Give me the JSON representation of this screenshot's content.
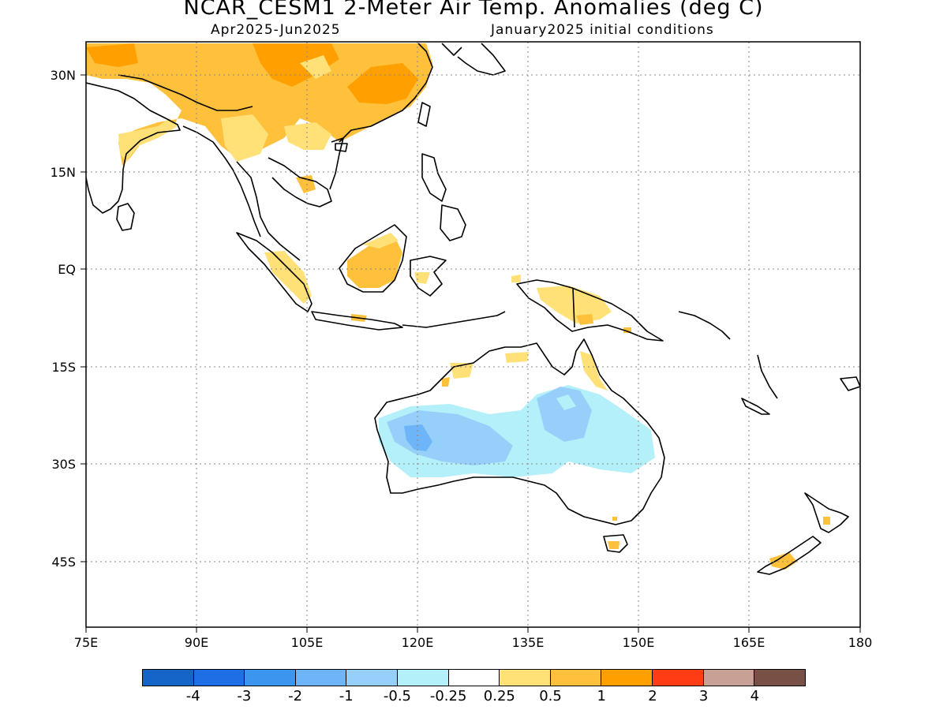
{
  "header": {
    "title": "NCAR_CESM1 2-Meter Air Temp. Anomalies (deg C)",
    "period": "Apr2025-Jun2025",
    "initial_conditions": "January2025 initial conditions"
  },
  "axes": {
    "x_ticks": [
      "75E",
      "90E",
      "105E",
      "120E",
      "135E",
      "150E",
      "165E",
      "180"
    ],
    "y_ticks": [
      "30N",
      "15N",
      "EQ",
      "15S",
      "30S",
      "45S"
    ]
  },
  "colorbar": {
    "colors": [
      "#1564c8",
      "#1e6ee6",
      "#3c96f0",
      "#6eb4f8",
      "#96d0fa",
      "#b4f0fa",
      "#ffffff",
      "#ffe178",
      "#ffc03c",
      "#ffa000",
      "#ff3c14",
      "#c8a096",
      "#785046"
    ],
    "labels": [
      "-4",
      "-3",
      "-2",
      "-1",
      "-0.5",
      "-0.25",
      "0.25",
      "0.5",
      "1",
      "2",
      "3",
      "4"
    ]
  }
}
